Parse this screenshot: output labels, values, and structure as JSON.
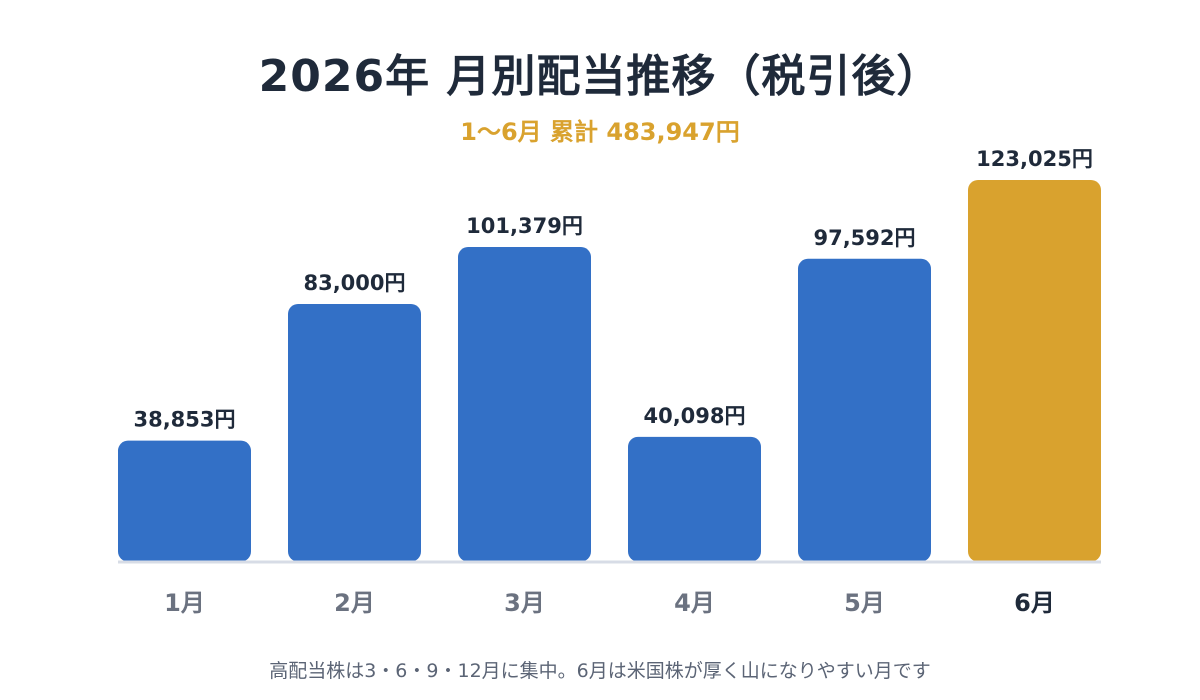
{
  "title": "2026年 月別配当推移（税引後）",
  "subtitle": "1〜6月 累計 483,947円",
  "note": "高配当株は3・6・9・12月に集中。6月は米国株が厚く山になりやすい月です",
  "colors": {
    "bar": "#3370c6",
    "highlight": "#d9a22e",
    "title": "#1f2a3a",
    "label": "#1f2a3a",
    "category": "#6b7280",
    "category_highlight": "#1f2a3a",
    "baseline": "#d7dce6"
  },
  "chart_data": {
    "type": "bar",
    "title": "2026年 月別配当推移（税引後）",
    "subtitle": "1〜6月 累計 483,947円",
    "categories": [
      "1月",
      "2月",
      "3月",
      "4月",
      "5月",
      "6月"
    ],
    "values": [
      38853,
      83000,
      101379,
      40098,
      97592,
      123025
    ],
    "value_labels": [
      "38,853円",
      "83,000円",
      "101,379円",
      "40,098円",
      "97,592円",
      "123,025円"
    ],
    "highlight_index": 5,
    "xlabel": "",
    "ylabel": "",
    "ylim": [
      0,
      123025
    ],
    "grid": false,
    "legend": "none"
  }
}
